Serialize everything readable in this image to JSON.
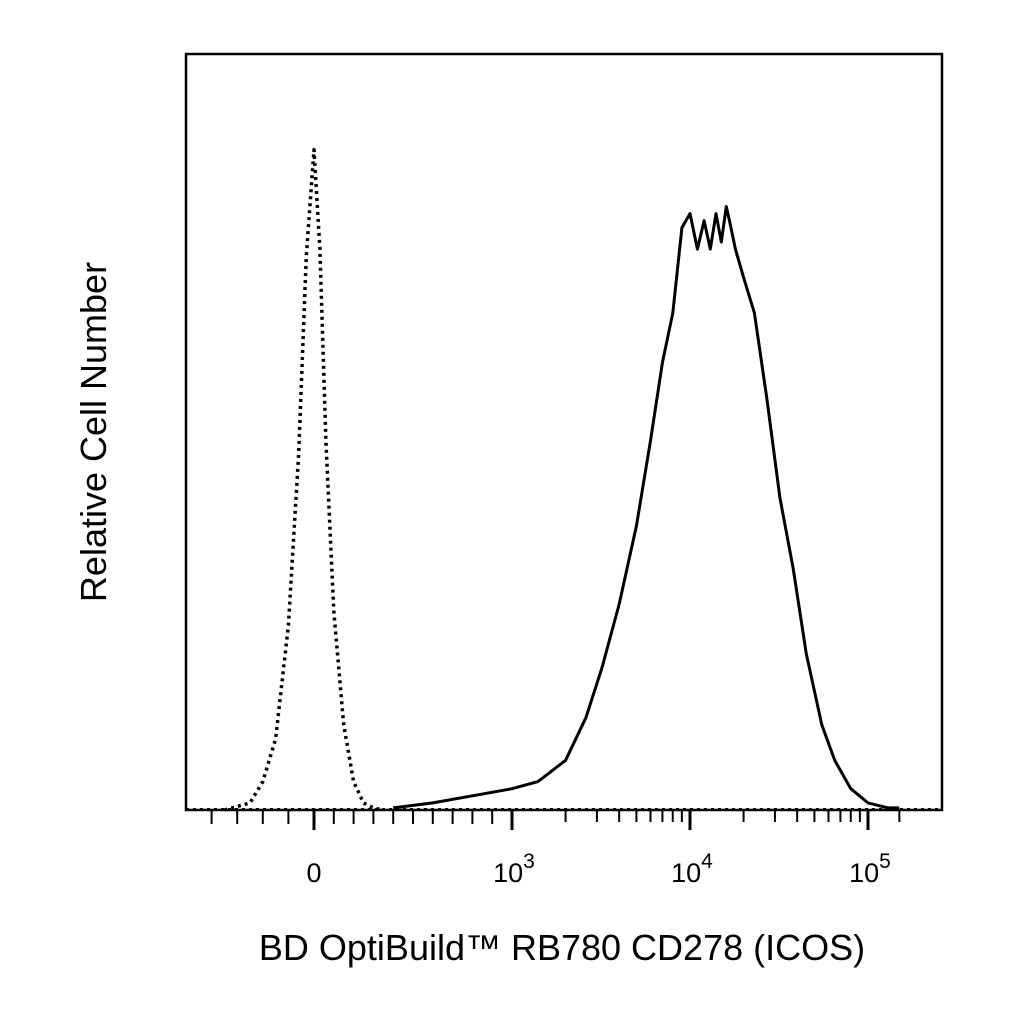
{
  "chart_data": {
    "type": "area",
    "xlabel": "BD OptiBuild™ RB780 CD278 (ICOS)",
    "ylabel": "Relative Cell Number",
    "x_scale": "biexponential",
    "xlim": [
      -500,
      150000
    ],
    "ylim": [
      0,
      100
    ],
    "grid": false,
    "x_ticks": [
      {
        "value": 0,
        "base": "0",
        "exp": ""
      },
      {
        "value": 1000,
        "base": "10",
        "exp": "3"
      },
      {
        "value": 10000,
        "base": "10",
        "exp": "4"
      },
      {
        "value": 100000,
        "base": "10",
        "exp": "5"
      }
    ],
    "series": [
      {
        "style": "dotted",
        "x": [
          -350,
          -250,
          -200,
          -150,
          -100,
          -60,
          -30,
          0,
          30,
          60,
          100,
          150,
          200,
          250,
          300,
          350
        ],
        "y": [
          0,
          1,
          4,
          10,
          26,
          50,
          78,
          93,
          79,
          52,
          28,
          12,
          4,
          1,
          0.3,
          0
        ]
      },
      {
        "style": "solid",
        "x": [
          400,
          600,
          800,
          1000,
          1400,
          2000,
          2600,
          3200,
          4000,
          5000,
          6000,
          7000,
          8000,
          9000,
          10000,
          11000,
          12000,
          13000,
          14000,
          15000,
          16000,
          17000,
          18000,
          20000,
          23000,
          27000,
          32000,
          38000,
          45000,
          55000,
          65000,
          80000,
          100000,
          130000,
          150000
        ],
        "y": [
          0.3,
          1,
          2,
          3,
          4,
          7,
          13,
          20,
          29,
          40,
          52,
          63,
          70,
          82,
          84,
          79,
          83,
          79,
          84,
          80,
          85,
          82,
          79,
          75,
          70,
          58,
          44,
          34,
          22,
          12,
          7,
          3,
          1,
          0.3,
          0.3
        ]
      }
    ]
  }
}
